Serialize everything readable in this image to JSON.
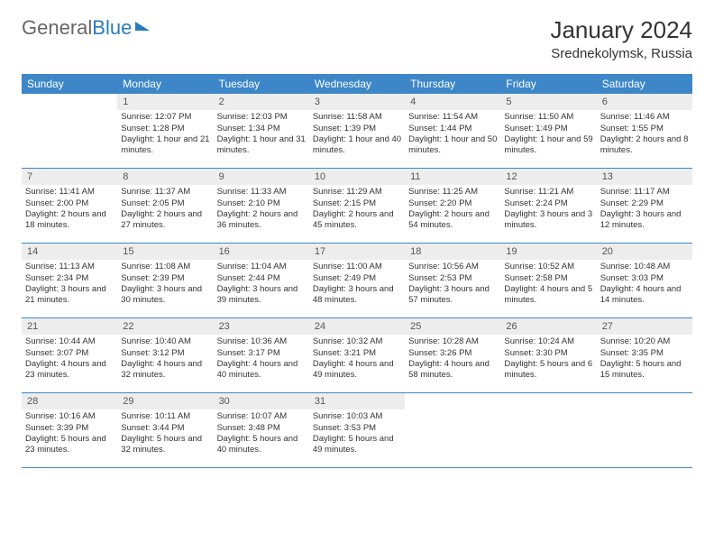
{
  "logo": {
    "part1": "General",
    "part2": "Blue"
  },
  "title": "January 2024",
  "location": "Srednekolymsk, Russia",
  "weekdays": [
    "Sunday",
    "Monday",
    "Tuesday",
    "Wednesday",
    "Thursday",
    "Friday",
    "Saturday"
  ],
  "colors": {
    "header_bg": "#3D87C9",
    "daynum_bg": "#EDEDED",
    "text": "#333333",
    "accent": "#2B7BBF"
  },
  "weeks": [
    [
      {
        "num": "",
        "info": ""
      },
      {
        "num": "1",
        "info": "Sunrise: 12:07 PM\nSunset: 1:28 PM\nDaylight: 1 hour and 21 minutes."
      },
      {
        "num": "2",
        "info": "Sunrise: 12:03 PM\nSunset: 1:34 PM\nDaylight: 1 hour and 31 minutes."
      },
      {
        "num": "3",
        "info": "Sunrise: 11:58 AM\nSunset: 1:39 PM\nDaylight: 1 hour and 40 minutes."
      },
      {
        "num": "4",
        "info": "Sunrise: 11:54 AM\nSunset: 1:44 PM\nDaylight: 1 hour and 50 minutes."
      },
      {
        "num": "5",
        "info": "Sunrise: 11:50 AM\nSunset: 1:49 PM\nDaylight: 1 hour and 59 minutes."
      },
      {
        "num": "6",
        "info": "Sunrise: 11:46 AM\nSunset: 1:55 PM\nDaylight: 2 hours and 8 minutes."
      }
    ],
    [
      {
        "num": "7",
        "info": "Sunrise: 11:41 AM\nSunset: 2:00 PM\nDaylight: 2 hours and 18 minutes."
      },
      {
        "num": "8",
        "info": "Sunrise: 11:37 AM\nSunset: 2:05 PM\nDaylight: 2 hours and 27 minutes."
      },
      {
        "num": "9",
        "info": "Sunrise: 11:33 AM\nSunset: 2:10 PM\nDaylight: 2 hours and 36 minutes."
      },
      {
        "num": "10",
        "info": "Sunrise: 11:29 AM\nSunset: 2:15 PM\nDaylight: 2 hours and 45 minutes."
      },
      {
        "num": "11",
        "info": "Sunrise: 11:25 AM\nSunset: 2:20 PM\nDaylight: 2 hours and 54 minutes."
      },
      {
        "num": "12",
        "info": "Sunrise: 11:21 AM\nSunset: 2:24 PM\nDaylight: 3 hours and 3 minutes."
      },
      {
        "num": "13",
        "info": "Sunrise: 11:17 AM\nSunset: 2:29 PM\nDaylight: 3 hours and 12 minutes."
      }
    ],
    [
      {
        "num": "14",
        "info": "Sunrise: 11:13 AM\nSunset: 2:34 PM\nDaylight: 3 hours and 21 minutes."
      },
      {
        "num": "15",
        "info": "Sunrise: 11:08 AM\nSunset: 2:39 PM\nDaylight: 3 hours and 30 minutes."
      },
      {
        "num": "16",
        "info": "Sunrise: 11:04 AM\nSunset: 2:44 PM\nDaylight: 3 hours and 39 minutes."
      },
      {
        "num": "17",
        "info": "Sunrise: 11:00 AM\nSunset: 2:49 PM\nDaylight: 3 hours and 48 minutes."
      },
      {
        "num": "18",
        "info": "Sunrise: 10:56 AM\nSunset: 2:53 PM\nDaylight: 3 hours and 57 minutes."
      },
      {
        "num": "19",
        "info": "Sunrise: 10:52 AM\nSunset: 2:58 PM\nDaylight: 4 hours and 5 minutes."
      },
      {
        "num": "20",
        "info": "Sunrise: 10:48 AM\nSunset: 3:03 PM\nDaylight: 4 hours and 14 minutes."
      }
    ],
    [
      {
        "num": "21",
        "info": "Sunrise: 10:44 AM\nSunset: 3:07 PM\nDaylight: 4 hours and 23 minutes."
      },
      {
        "num": "22",
        "info": "Sunrise: 10:40 AM\nSunset: 3:12 PM\nDaylight: 4 hours and 32 minutes."
      },
      {
        "num": "23",
        "info": "Sunrise: 10:36 AM\nSunset: 3:17 PM\nDaylight: 4 hours and 40 minutes."
      },
      {
        "num": "24",
        "info": "Sunrise: 10:32 AM\nSunset: 3:21 PM\nDaylight: 4 hours and 49 minutes."
      },
      {
        "num": "25",
        "info": "Sunrise: 10:28 AM\nSunset: 3:26 PM\nDaylight: 4 hours and 58 minutes."
      },
      {
        "num": "26",
        "info": "Sunrise: 10:24 AM\nSunset: 3:30 PM\nDaylight: 5 hours and 6 minutes."
      },
      {
        "num": "27",
        "info": "Sunrise: 10:20 AM\nSunset: 3:35 PM\nDaylight: 5 hours and 15 minutes."
      }
    ],
    [
      {
        "num": "28",
        "info": "Sunrise: 10:16 AM\nSunset: 3:39 PM\nDaylight: 5 hours and 23 minutes."
      },
      {
        "num": "29",
        "info": "Sunrise: 10:11 AM\nSunset: 3:44 PM\nDaylight: 5 hours and 32 minutes."
      },
      {
        "num": "30",
        "info": "Sunrise: 10:07 AM\nSunset: 3:48 PM\nDaylight: 5 hours and 40 minutes."
      },
      {
        "num": "31",
        "info": "Sunrise: 10:03 AM\nSunset: 3:53 PM\nDaylight: 5 hours and 49 minutes."
      },
      {
        "num": "",
        "info": ""
      },
      {
        "num": "",
        "info": ""
      },
      {
        "num": "",
        "info": ""
      }
    ]
  ]
}
